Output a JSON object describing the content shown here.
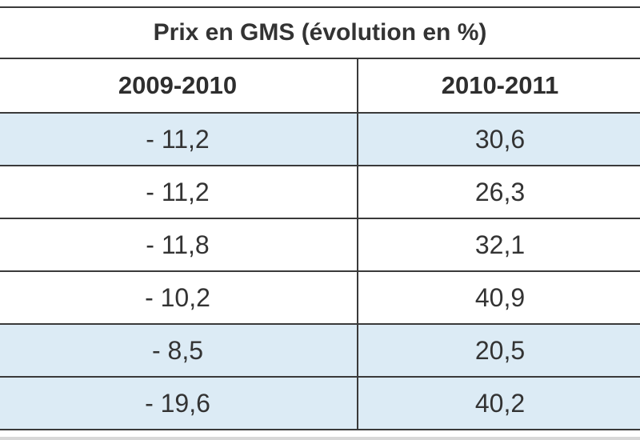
{
  "table": {
    "title": "Prix en GMS (évolution en %)",
    "columns": [
      "2009-2010",
      "2010-2011"
    ],
    "rows": [
      [
        "- 11,2",
        "30,6"
      ],
      [
        "- 11,2",
        "26,3"
      ],
      [
        "- 11,8",
        "32,1"
      ],
      [
        "- 10,2",
        "40,9"
      ],
      [
        "- 8,5",
        "20,5"
      ],
      [
        "- 19,6",
        "40,2"
      ]
    ],
    "row_shading": [
      "shaded",
      "plain",
      "plain",
      "plain",
      "shaded",
      "shaded"
    ],
    "colors": {
      "shaded_row": "#dcebf5",
      "border": "#3a3a3a",
      "text": "#333333"
    }
  }
}
